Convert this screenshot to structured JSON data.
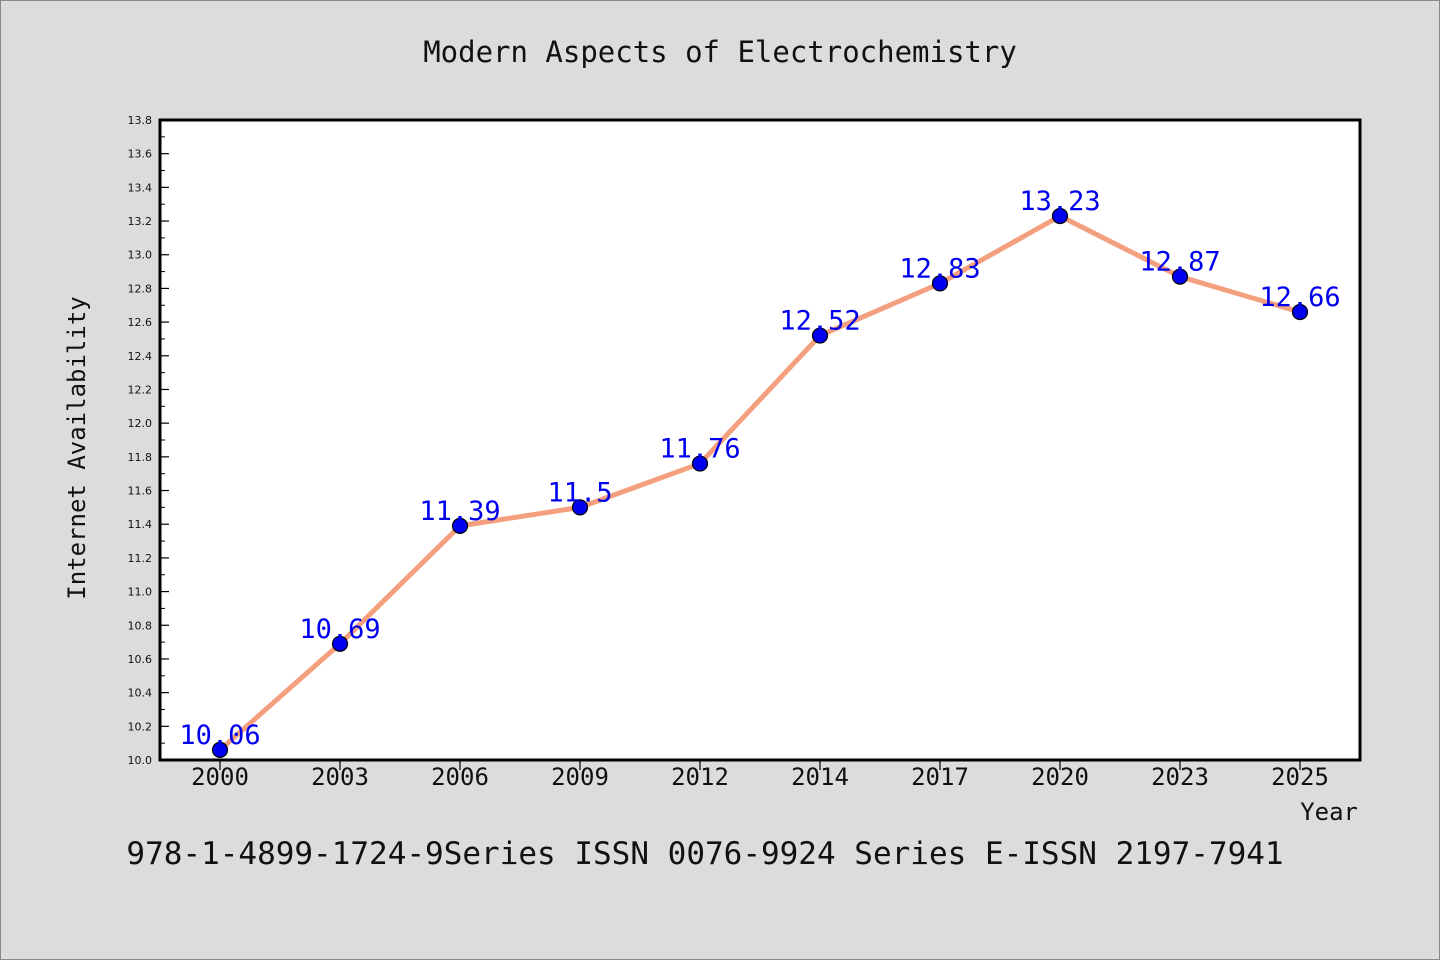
{
  "chart_data": {
    "type": "line",
    "title": "Modern Aspects of Electrochemistry",
    "xlabel": "Year",
    "ylabel": "Internet Availability",
    "footer": "978-1-4899-1724-9Series ISSN 0076-9924 Series E-ISSN 2197-7941",
    "categories": [
      "2000",
      "2003",
      "2006",
      "2009",
      "2012",
      "2014",
      "2017",
      "2020",
      "2023",
      "2025"
    ],
    "series": [
      {
        "values": [
          10.06,
          10.69,
          11.39,
          11.5,
          11.76,
          12.52,
          12.83,
          13.23,
          12.87,
          12.66
        ],
        "labels": [
          "10.06",
          "10.69",
          "11.39",
          "11.5",
          "11.76",
          "12.52",
          "12.83",
          "13.23",
          "12.87",
          "12.66"
        ]
      }
    ],
    "ylim": [
      10.0,
      13.8
    ],
    "yticks": [
      "10.0",
      "10.2",
      "10.4",
      "10.6",
      "10.8",
      "11.0",
      "11.2",
      "11.4",
      "11.6",
      "11.8",
      "12.0",
      "12.2",
      "12.4",
      "12.6",
      "12.8",
      "13.0",
      "13.2",
      "13.4",
      "13.6",
      "13.8"
    ],
    "grid": false,
    "colors": {
      "line": "#f4a07e",
      "marker": "#0000ee",
      "data_label": "#0000ee",
      "background": "#dcdcdc",
      "plot_background": "#ffffff"
    }
  }
}
